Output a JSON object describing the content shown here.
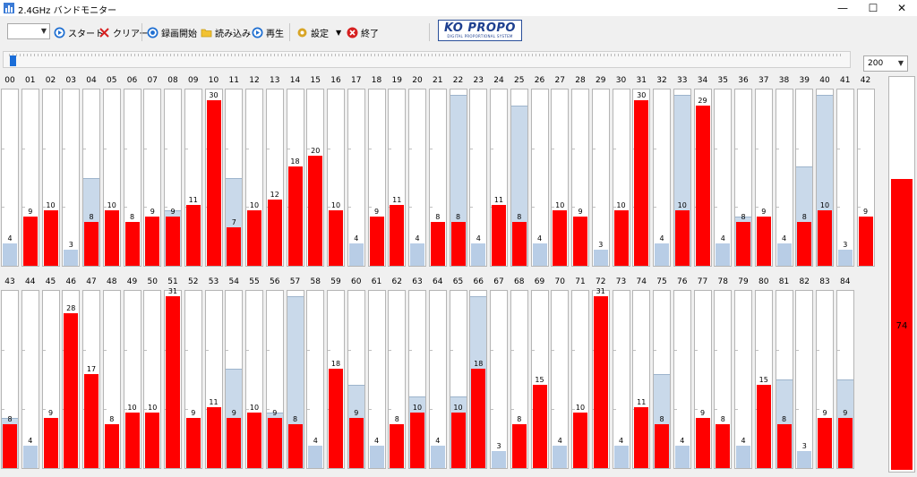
{
  "window": {
    "title": "2.4GHz バンドモニター",
    "minimize": "—",
    "maximize": "☐",
    "close": "✕"
  },
  "toolbar": {
    "combo_value": "",
    "start_label": "スタート",
    "clear_label": "クリアー",
    "record_label": "録画開始",
    "load_label": "読み込み",
    "play_label": "再生",
    "settings_label": "設定",
    "exit_label": "終了",
    "logo_main": "KO PROPO",
    "logo_sub": "DIGITAL PROPORTIONAL SYSTEM"
  },
  "zoom": {
    "value": "200"
  },
  "scale_max": 32,
  "total": {
    "value": 74,
    "max": 100
  },
  "colors": {
    "bar": "#ff0000",
    "peak": "#c9d9ea",
    "low_bar": "#b8cde6"
  },
  "rows": [
    {
      "channels": [
        {
          "id": "00",
          "value": 4,
          "peak": 4
        },
        {
          "id": "01",
          "value": 9,
          "peak": 9
        },
        {
          "id": "02",
          "value": 10,
          "peak": 10
        },
        {
          "id": "03",
          "value": 3,
          "peak": 3
        },
        {
          "id": "04",
          "value": 8,
          "peak": 16
        },
        {
          "id": "05",
          "value": 10,
          "peak": 10
        },
        {
          "id": "06",
          "value": 8,
          "peak": 8
        },
        {
          "id": "07",
          "value": 9,
          "peak": 9
        },
        {
          "id": "08",
          "value": 9,
          "peak": 10
        },
        {
          "id": "09",
          "value": 11,
          "peak": 11
        },
        {
          "id": "10",
          "value": 30,
          "peak": 30
        },
        {
          "id": "11",
          "value": 7,
          "peak": 16
        },
        {
          "id": "12",
          "value": 10,
          "peak": 10
        },
        {
          "id": "13",
          "value": 12,
          "peak": 12
        },
        {
          "id": "14",
          "value": 18,
          "peak": 18
        },
        {
          "id": "15",
          "value": 20,
          "peak": 20
        },
        {
          "id": "16",
          "value": 10,
          "peak": 10
        },
        {
          "id": "17",
          "value": 4,
          "peak": 4
        },
        {
          "id": "18",
          "value": 9,
          "peak": 9
        },
        {
          "id": "19",
          "value": 11,
          "peak": 11
        },
        {
          "id": "20",
          "value": 4,
          "peak": 4
        },
        {
          "id": "21",
          "value": 8,
          "peak": 8
        },
        {
          "id": "22",
          "value": 8,
          "peak": 31
        },
        {
          "id": "23",
          "value": 4,
          "peak": 4
        },
        {
          "id": "24",
          "value": 11,
          "peak": 11
        },
        {
          "id": "25",
          "value": 8,
          "peak": 29
        },
        {
          "id": "26",
          "value": 4,
          "peak": 4
        },
        {
          "id": "27",
          "value": 10,
          "peak": 10
        },
        {
          "id": "28",
          "value": 9,
          "peak": 9
        },
        {
          "id": "29",
          "value": 3,
          "peak": 3
        },
        {
          "id": "30",
          "value": 10,
          "peak": 10
        },
        {
          "id": "31",
          "value": 30,
          "peak": 30
        },
        {
          "id": "32",
          "value": 4,
          "peak": 4
        },
        {
          "id": "33",
          "value": 10,
          "peak": 31
        },
        {
          "id": "34",
          "value": 29,
          "peak": 29
        },
        {
          "id": "35",
          "value": 4,
          "peak": 4
        },
        {
          "id": "36",
          "value": 8,
          "peak": 9
        },
        {
          "id": "37",
          "value": 9,
          "peak": 9
        },
        {
          "id": "38",
          "value": 4,
          "peak": 4
        },
        {
          "id": "39",
          "value": 8,
          "peak": 18
        },
        {
          "id": "40",
          "value": 10,
          "peak": 31
        },
        {
          "id": "41",
          "value": 3,
          "peak": 3
        },
        {
          "id": "42",
          "value": 9,
          "peak": 9
        }
      ]
    },
    {
      "channels": [
        {
          "id": "43",
          "value": 8,
          "peak": 9
        },
        {
          "id": "44",
          "value": 4,
          "peak": 4
        },
        {
          "id": "45",
          "value": 9,
          "peak": 9
        },
        {
          "id": "46",
          "value": 28,
          "peak": 28
        },
        {
          "id": "47",
          "value": 17,
          "peak": 17
        },
        {
          "id": "48",
          "value": 8,
          "peak": 8
        },
        {
          "id": "49",
          "value": 10,
          "peak": 10
        },
        {
          "id": "50",
          "value": 10,
          "peak": 10
        },
        {
          "id": "51",
          "value": 31,
          "peak": 31
        },
        {
          "id": "52",
          "value": 9,
          "peak": 9
        },
        {
          "id": "53",
          "value": 11,
          "peak": 11
        },
        {
          "id": "54",
          "value": 9,
          "peak": 18
        },
        {
          "id": "55",
          "value": 10,
          "peak": 10
        },
        {
          "id": "56",
          "value": 9,
          "peak": 10
        },
        {
          "id": "57",
          "value": 8,
          "peak": 31
        },
        {
          "id": "58",
          "value": 4,
          "peak": 4
        },
        {
          "id": "59",
          "value": 18,
          "peak": 18
        },
        {
          "id": "60",
          "value": 9,
          "peak": 15
        },
        {
          "id": "61",
          "value": 4,
          "peak": 4
        },
        {
          "id": "62",
          "value": 8,
          "peak": 8
        },
        {
          "id": "63",
          "value": 10,
          "peak": 13
        },
        {
          "id": "64",
          "value": 4,
          "peak": 4
        },
        {
          "id": "65",
          "value": 10,
          "peak": 13
        },
        {
          "id": "66",
          "value": 18,
          "peak": 31
        },
        {
          "id": "67",
          "value": 3,
          "peak": 3
        },
        {
          "id": "68",
          "value": 8,
          "peak": 8
        },
        {
          "id": "69",
          "value": 15,
          "peak": 15
        },
        {
          "id": "70",
          "value": 4,
          "peak": 4
        },
        {
          "id": "71",
          "value": 10,
          "peak": 10
        },
        {
          "id": "72",
          "value": 31,
          "peak": 31
        },
        {
          "id": "73",
          "value": 4,
          "peak": 4
        },
        {
          "id": "74",
          "value": 11,
          "peak": 11
        },
        {
          "id": "75",
          "value": 8,
          "peak": 17
        },
        {
          "id": "76",
          "value": 4,
          "peak": 4
        },
        {
          "id": "77",
          "value": 9,
          "peak": 9
        },
        {
          "id": "78",
          "value": 8,
          "peak": 8
        },
        {
          "id": "79",
          "value": 4,
          "peak": 4
        },
        {
          "id": "80",
          "value": 15,
          "peak": 15
        },
        {
          "id": "81",
          "value": 8,
          "peak": 16
        },
        {
          "id": "82",
          "value": 3,
          "peak": 3
        },
        {
          "id": "83",
          "value": 9,
          "peak": 9
        },
        {
          "id": "84",
          "value": 9,
          "peak": 16
        }
      ]
    }
  ]
}
